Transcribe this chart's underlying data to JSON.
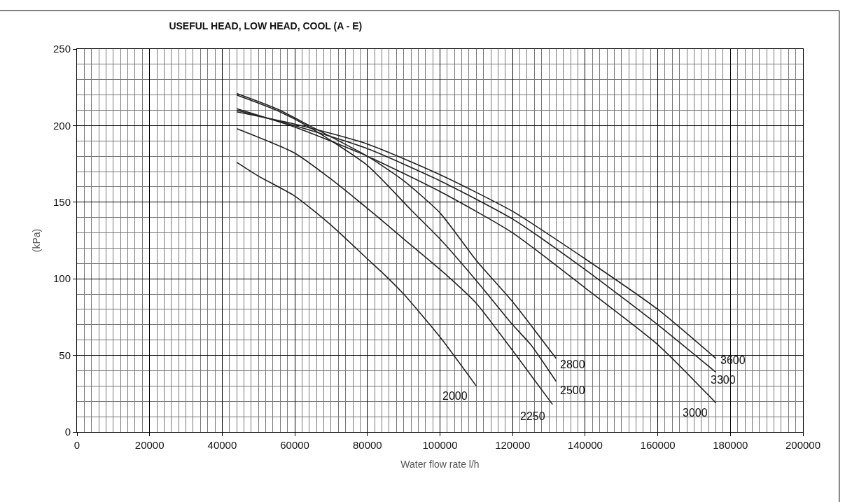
{
  "chart_data": {
    "type": "line",
    "title": "USEFUL HEAD, LOW HEAD, COOL (A - E)",
    "xlabel": "Water flow rate l/h",
    "ylabel": "(kPa)",
    "xlim": [
      0,
      200000
    ],
    "xticks": [
      0,
      20000,
      40000,
      60000,
      80000,
      100000,
      120000,
      140000,
      160000,
      180000,
      200000
    ],
    "ylim": [
      0,
      250
    ],
    "yticks": [
      0,
      50,
      100,
      150,
      200,
      250
    ],
    "grid": true,
    "legend": false,
    "marker": "none",
    "line_style": "solid",
    "series": [
      {
        "name": "2000",
        "color": "#222222",
        "x": [
          44000,
          50000,
          60000,
          70000,
          80000,
          85000,
          90000,
          100000,
          110000
        ],
        "values": [
          176,
          167,
          154,
          135,
          113,
          102,
          90,
          62,
          30
        ]
      },
      {
        "name": "2250",
        "color": "#222222",
        "x": [
          44000,
          60000,
          70000,
          81000,
          90000,
          102000,
          110000,
          121000,
          131000
        ],
        "values": [
          198,
          182,
          165,
          144,
          126,
          102,
          84,
          50,
          18
        ]
      },
      {
        "name": "2500",
        "color": "#222222",
        "x": [
          44000,
          55000,
          64000,
          80000,
          92000,
          100000,
          111000,
          120000,
          125000,
          132000
        ],
        "values": [
          220,
          210,
          199,
          174,
          145,
          126,
          96,
          70,
          57,
          33
        ]
      },
      {
        "name": "2800",
        "color": "#222222",
        "x": [
          44000,
          55000,
          64000,
          80000,
          90000,
          100000,
          110000,
          120000,
          132000
        ],
        "values": [
          221,
          211,
          200,
          180,
          164,
          143,
          112,
          85,
          48
        ]
      },
      {
        "name": "3000",
        "color": "#222222",
        "x": [
          44000,
          60000,
          80000,
          100000,
          120000,
          140000,
          160000,
          176000
        ],
        "values": [
          211,
          199,
          180,
          157,
          130,
          94,
          57,
          19
        ]
      },
      {
        "name": "3300",
        "color": "#222222",
        "x": [
          44000,
          60000,
          80000,
          100000,
          120000,
          140000,
          160000,
          176000
        ],
        "values": [
          210,
          200,
          185,
          164,
          139,
          106,
          70,
          39
        ]
      },
      {
        "name": "3600",
        "color": "#222222",
        "x": [
          44000,
          60000,
          80000,
          100000,
          120000,
          140000,
          160000,
          176000
        ],
        "values": [
          209,
          201,
          188,
          168,
          144,
          113,
          80,
          48
        ]
      }
    ]
  }
}
